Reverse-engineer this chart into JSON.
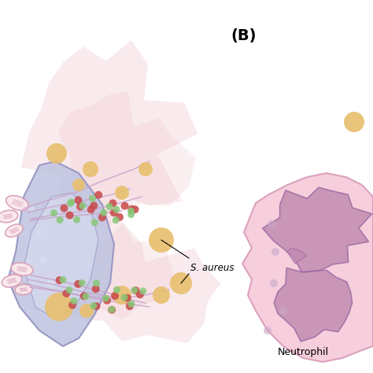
{
  "title_label": "(B)",
  "bg_color": "#ffffff",
  "neutrophil_label": "Neutrophil",
  "saureus_label": "S. aureus",
  "cell_body_color": "#c0c4e0",
  "cell_body_edge": "#9090c0",
  "cell_nucleus_color": "#d8dcf0",
  "net_blob_color": "#f0c8d0",
  "net_line_color": "#c8a0c8",
  "mitochondria_fill": "#fce8ec",
  "mitochondria_edge": "#d8a0b8",
  "neutrophil_body_color": "#f5c8d8",
  "neutrophil_body_edge": "#d898b8",
  "neutrophil_nucleus_color": "#c088b0",
  "neutrophil_nucleus_edge": "#9868a0",
  "aureus_color": "#e8c070",
  "red_dot_color": "#c84848",
  "green_dot_color": "#88c878",
  "small_dot_color": "#c8a8c8"
}
